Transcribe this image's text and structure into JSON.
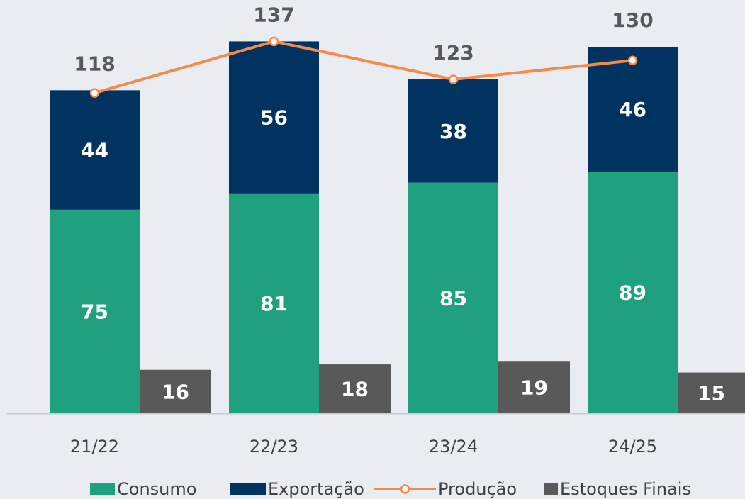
{
  "chart_data": {
    "type": "bar",
    "categories": [
      "21/22",
      "22/23",
      "23/24",
      "24/25"
    ],
    "series": [
      {
        "name": "Consumo",
        "color": "#1fa07f",
        "values": [
          75,
          81,
          85,
          89
        ],
        "stacked": true
      },
      {
        "name": "Exportação",
        "color": "#003360",
        "values": [
          44,
          56,
          38,
          46
        ],
        "stacked": true
      },
      {
        "name": "Produção",
        "type": "line",
        "color": "#f58a4b",
        "values": [
          118,
          137,
          123,
          130
        ]
      },
      {
        "name": "Estoques Finais",
        "color": "#595959",
        "values": [
          16,
          18,
          19,
          15
        ]
      }
    ],
    "ylim": [
      0,
      152
    ],
    "legend": "bottom"
  }
}
